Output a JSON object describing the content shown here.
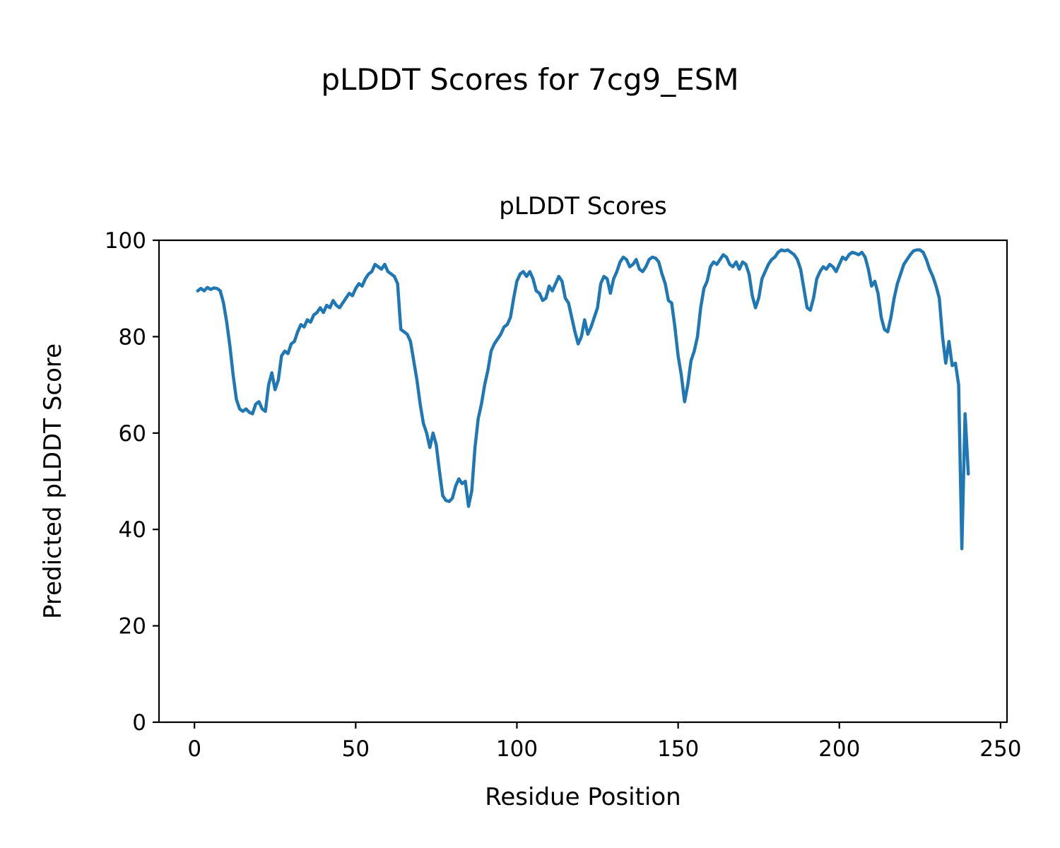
{
  "figure": {
    "suptitle": "pLDDT Scores for 7cg9_ESM"
  },
  "chart_data": {
    "type": "line",
    "title": "pLDDT Scores",
    "xlabel": "Residue Position",
    "ylabel": "Predicted pLDDT Score",
    "legend": "none",
    "grid": false,
    "line_color": "#1f77b4",
    "axis_color": "#000000",
    "xlim": [
      -11,
      252
    ],
    "ylim": [
      0,
      100
    ],
    "x_ticks": [
      0,
      50,
      100,
      150,
      200,
      250
    ],
    "y_ticks": [
      0,
      20,
      40,
      60,
      80,
      100
    ],
    "x_range": [
      1,
      240
    ],
    "values": [
      89.5,
      90,
      89.5,
      90.2,
      89.8,
      90.1,
      90,
      89.5,
      87,
      83,
      78,
      72,
      67,
      65,
      64.5,
      65,
      64.3,
      64,
      66,
      66.5,
      65,
      64.5,
      70,
      72.5,
      69,
      71,
      76,
      77,
      76.5,
      78.5,
      79,
      81,
      82.5,
      82,
      83.5,
      83,
      84.5,
      85,
      86,
      85,
      86.5,
      86,
      87.5,
      86.5,
      86,
      87,
      88,
      89,
      88.5,
      90,
      91,
      90.5,
      92,
      93,
      93.5,
      95,
      94.5,
      94,
      95,
      93.5,
      93,
      92.5,
      91,
      81.5,
      81,
      80.5,
      79,
      75,
      71,
      66,
      62,
      60,
      57,
      60,
      57.5,
      52,
      47,
      46,
      45.8,
      46.5,
      49,
      50.5,
      49.5,
      50,
      44.8,
      48,
      57,
      63,
      66,
      70,
      73,
      77,
      78.5,
      79.5,
      80.5,
      82,
      82.5,
      84,
      88,
      91.5,
      93,
      93.5,
      92.5,
      93.5,
      92,
      89.5,
      89,
      87.5,
      88,
      90.5,
      89.5,
      91,
      92.5,
      91.5,
      88,
      87,
      84,
      81,
      78.5,
      80,
      83.5,
      80.5,
      82,
      84,
      86,
      91,
      92.5,
      92,
      89,
      92,
      93.5,
      95.5,
      96.5,
      96,
      94.5,
      95,
      96,
      94,
      93.5,
      94.5,
      96,
      96.5,
      96.3,
      95.5,
      93,
      91,
      87.5,
      87,
      82,
      76,
      72,
      66.5,
      70,
      75,
      77,
      80,
      86,
      90,
      91.5,
      94.5,
      95.5,
      95,
      96,
      97,
      96.5,
      95,
      94.5,
      95.5,
      94,
      95.5,
      95,
      93,
      88.5,
      86,
      88,
      92,
      93.5,
      95,
      96,
      96.5,
      97.5,
      98,
      97.8,
      98,
      97.5,
      97,
      96,
      94,
      90,
      86,
      85.5,
      88,
      92,
      93.5,
      94.5,
      94,
      95,
      94.5,
      93.5,
      95,
      96.5,
      96,
      97,
      97.5,
      97.3,
      97,
      97.5,
      96.5,
      94,
      90.5,
      91.5,
      89,
      84,
      81.5,
      81,
      84,
      88,
      91,
      93,
      95,
      96,
      97,
      97.8,
      98,
      98,
      97.5,
      96,
      94,
      92.5,
      90.5,
      88,
      80,
      74.5,
      79,
      74,
      74.5,
      70,
      36,
      64,
      51.5
    ]
  }
}
